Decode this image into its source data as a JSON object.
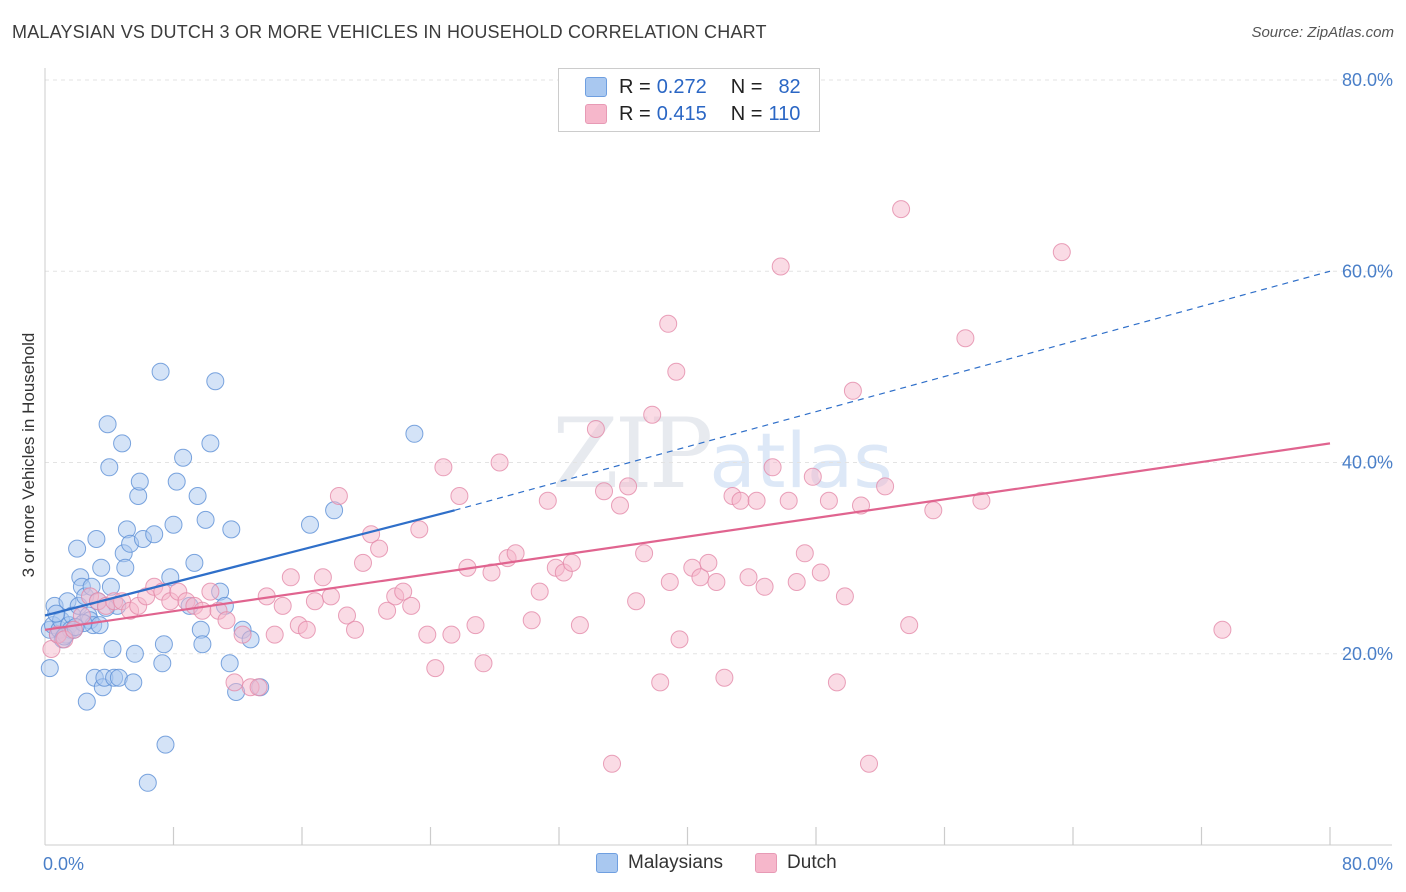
{
  "header": {
    "title": "MALAYSIAN VS DUTCH 3 OR MORE VEHICLES IN HOUSEHOLD CORRELATION CHART",
    "source": "Source: ZipAtlas.com"
  },
  "watermark": {
    "zip": "ZIP",
    "atlas": "atlas"
  },
  "legend": {
    "rows": [
      {
        "r_key": "R =",
        "r_val": "0.272",
        "n_key": "N =",
        "n_val": "82",
        "color": "#a9c8f0"
      },
      {
        "r_key": "R =",
        "r_val": "0.415",
        "n_key": "N =",
        "n_val": "110",
        "color": "#f6b7cb"
      }
    ]
  },
  "bottom_legend": {
    "items": [
      {
        "label": "Malaysians",
        "color": "#a9c8f0"
      },
      {
        "label": "Dutch",
        "color": "#f6b7cb"
      }
    ]
  },
  "chart_data": {
    "type": "scatter",
    "title": "MALAYSIAN VS DUTCH 3 OR MORE VEHICLES IN HOUSEHOLD CORRELATION CHART",
    "xlabel": "",
    "ylabel": "3 or more Vehicles in Household",
    "xlim": [
      0,
      80
    ],
    "ylim": [
      0,
      80
    ],
    "x_tick_labels": [
      "0.0%",
      "80.0%"
    ],
    "y_tick_labels": [
      "20.0%",
      "40.0%",
      "60.0%",
      "80.0%"
    ],
    "y_ticks": [
      20,
      40,
      60,
      80
    ],
    "grid": true,
    "legend_position": "top-center",
    "series": [
      {
        "name": "Malaysians",
        "color": "#a9c8f0",
        "stroke": "#5b8fd6",
        "R": 0.272,
        "N": 82,
        "trend": {
          "x0": 0,
          "y0": 24.0,
          "x1": 25.5,
          "y1": 35.0,
          "dashed_to_x": 80,
          "dashed_to_y": 60.0,
          "color": "#2f6fc9"
        },
        "points": [
          [
            0.3,
            18.5
          ],
          [
            0.3,
            22.5
          ],
          [
            0.5,
            23.0
          ],
          [
            0.6,
            25.0
          ],
          [
            0.8,
            22.0
          ],
          [
            0.9,
            22.5
          ],
          [
            1.0,
            23.5
          ],
          [
            1.1,
            21.5
          ],
          [
            1.3,
            22.0
          ],
          [
            1.4,
            25.5
          ],
          [
            1.5,
            23.0
          ],
          [
            1.6,
            22.5
          ],
          [
            1.7,
            24.0
          ],
          [
            1.8,
            22.5
          ],
          [
            2.0,
            31.0
          ],
          [
            2.1,
            25.0
          ],
          [
            2.2,
            28.0
          ],
          [
            2.3,
            27.0
          ],
          [
            2.5,
            26.0
          ],
          [
            2.6,
            15.0
          ],
          [
            2.7,
            24.0
          ],
          [
            2.8,
            23.5
          ],
          [
            2.9,
            27.0
          ],
          [
            3.0,
            23.0
          ],
          [
            3.1,
            17.5
          ],
          [
            3.2,
            32.0
          ],
          [
            3.3,
            25.5
          ],
          [
            3.4,
            23.0
          ],
          [
            3.5,
            29.0
          ],
          [
            3.6,
            16.5
          ],
          [
            3.7,
            17.5
          ],
          [
            3.9,
            44.0
          ],
          [
            4.0,
            39.5
          ],
          [
            4.1,
            27.0
          ],
          [
            4.2,
            20.5
          ],
          [
            4.3,
            17.5
          ],
          [
            4.5,
            25.0
          ],
          [
            4.6,
            17.5
          ],
          [
            4.8,
            42.0
          ],
          [
            4.9,
            30.5
          ],
          [
            5.0,
            29.0
          ],
          [
            5.1,
            33.0
          ],
          [
            5.3,
            31.5
          ],
          [
            5.5,
            17.0
          ],
          [
            5.6,
            20.0
          ],
          [
            5.8,
            36.5
          ],
          [
            5.9,
            38.0
          ],
          [
            6.1,
            32.0
          ],
          [
            6.4,
            6.5
          ],
          [
            6.8,
            32.5
          ],
          [
            7.2,
            49.5
          ],
          [
            7.3,
            19.0
          ],
          [
            7.4,
            21.0
          ],
          [
            7.5,
            10.5
          ],
          [
            7.8,
            28.0
          ],
          [
            8.0,
            33.5
          ],
          [
            8.2,
            38.0
          ],
          [
            8.6,
            40.5
          ],
          [
            9.0,
            25.0
          ],
          [
            9.3,
            29.5
          ],
          [
            9.5,
            36.5
          ],
          [
            9.7,
            22.5
          ],
          [
            9.8,
            21.0
          ],
          [
            10.0,
            34.0
          ],
          [
            10.3,
            42.0
          ],
          [
            10.6,
            48.5
          ],
          [
            10.9,
            26.5
          ],
          [
            11.2,
            25.0
          ],
          [
            11.5,
            19.0
          ],
          [
            11.6,
            33.0
          ],
          [
            11.9,
            16.0
          ],
          [
            12.3,
            22.5
          ],
          [
            12.8,
            21.5
          ],
          [
            13.4,
            16.5
          ],
          [
            16.5,
            33.5
          ],
          [
            18.0,
            35.0
          ],
          [
            23.0,
            43.0
          ],
          [
            1.2,
            21.8
          ],
          [
            2.4,
            23.2
          ],
          [
            0.7,
            24.2
          ],
          [
            3.8,
            24.8
          ],
          [
            1.9,
            22.8
          ]
        ]
      },
      {
        "name": "Dutch",
        "color": "#f6b7cb",
        "stroke": "#e389a9",
        "R": 0.415,
        "N": 110,
        "trend": {
          "x0": 0,
          "y0": 22.5,
          "x1": 80,
          "y1": 42.0,
          "color": "#e0648f"
        },
        "points": [
          [
            0.4,
            20.5
          ],
          [
            0.8,
            22.0
          ],
          [
            1.2,
            21.5
          ],
          [
            1.8,
            22.5
          ],
          [
            2.3,
            24.0
          ],
          [
            2.8,
            26.0
          ],
          [
            3.3,
            25.5
          ],
          [
            3.8,
            25.0
          ],
          [
            4.3,
            25.5
          ],
          [
            4.8,
            25.5
          ],
          [
            5.3,
            24.5
          ],
          [
            5.8,
            25.0
          ],
          [
            6.3,
            26.0
          ],
          [
            6.8,
            27.0
          ],
          [
            7.3,
            26.5
          ],
          [
            7.8,
            25.5
          ],
          [
            8.3,
            26.5
          ],
          [
            8.8,
            25.5
          ],
          [
            9.3,
            25.0
          ],
          [
            9.8,
            24.5
          ],
          [
            10.3,
            26.5
          ],
          [
            10.8,
            24.5
          ],
          [
            11.3,
            23.5
          ],
          [
            11.8,
            17.0
          ],
          [
            12.3,
            22.0
          ],
          [
            12.8,
            16.5
          ],
          [
            13.3,
            16.5
          ],
          [
            13.8,
            26.0
          ],
          [
            14.3,
            22.0
          ],
          [
            14.8,
            25.0
          ],
          [
            15.3,
            28.0
          ],
          [
            15.8,
            23.0
          ],
          [
            16.3,
            22.5
          ],
          [
            16.8,
            25.5
          ],
          [
            17.3,
            28.0
          ],
          [
            17.8,
            26.0
          ],
          [
            18.3,
            36.5
          ],
          [
            18.8,
            24.0
          ],
          [
            19.3,
            22.5
          ],
          [
            19.8,
            29.5
          ],
          [
            20.3,
            32.5
          ],
          [
            20.8,
            31.0
          ],
          [
            21.3,
            24.5
          ],
          [
            21.8,
            26.0
          ],
          [
            22.3,
            26.5
          ],
          [
            22.8,
            25.0
          ],
          [
            23.3,
            33.0
          ],
          [
            23.8,
            22.0
          ],
          [
            24.3,
            18.5
          ],
          [
            24.8,
            39.5
          ],
          [
            25.3,
            22.0
          ],
          [
            25.8,
            36.5
          ],
          [
            26.3,
            29.0
          ],
          [
            26.8,
            23.0
          ],
          [
            27.3,
            19.0
          ],
          [
            27.8,
            28.5
          ],
          [
            28.3,
            40.0
          ],
          [
            28.8,
            30.0
          ],
          [
            29.3,
            30.5
          ],
          [
            30.3,
            23.5
          ],
          [
            30.8,
            26.5
          ],
          [
            31.3,
            36.0
          ],
          [
            31.8,
            29.0
          ],
          [
            32.3,
            28.5
          ],
          [
            32.8,
            29.5
          ],
          [
            33.3,
            23.0
          ],
          [
            34.3,
            43.5
          ],
          [
            34.8,
            37.0
          ],
          [
            35.3,
            8.5
          ],
          [
            35.8,
            35.5
          ],
          [
            36.3,
            37.5
          ],
          [
            36.8,
            25.5
          ],
          [
            37.3,
            30.5
          ],
          [
            37.8,
            45.0
          ],
          [
            38.3,
            17.0
          ],
          [
            38.8,
            54.5
          ],
          [
            38.9,
            27.5
          ],
          [
            39.3,
            49.5
          ],
          [
            39.5,
            21.5
          ],
          [
            40.3,
            29.0
          ],
          [
            40.8,
            28.0
          ],
          [
            41.3,
            29.5
          ],
          [
            41.8,
            27.5
          ],
          [
            42.3,
            17.5
          ],
          [
            42.8,
            36.5
          ],
          [
            43.3,
            36.0
          ],
          [
            43.8,
            28.0
          ],
          [
            44.3,
            36.0
          ],
          [
            44.8,
            27.0
          ],
          [
            45.3,
            39.5
          ],
          [
            45.8,
            60.5
          ],
          [
            46.3,
            36.0
          ],
          [
            46.8,
            27.5
          ],
          [
            47.3,
            30.5
          ],
          [
            47.8,
            38.5
          ],
          [
            48.3,
            28.5
          ],
          [
            48.8,
            36.0
          ],
          [
            49.3,
            17.0
          ],
          [
            49.8,
            26.0
          ],
          [
            50.3,
            47.5
          ],
          [
            50.8,
            35.5
          ],
          [
            51.3,
            8.5
          ],
          [
            52.3,
            37.5
          ],
          [
            53.3,
            66.5
          ],
          [
            53.8,
            23.0
          ],
          [
            55.3,
            35.0
          ],
          [
            57.3,
            53.0
          ],
          [
            58.3,
            36.0
          ],
          [
            63.3,
            62.0
          ],
          [
            73.3,
            22.5
          ]
        ]
      }
    ]
  }
}
